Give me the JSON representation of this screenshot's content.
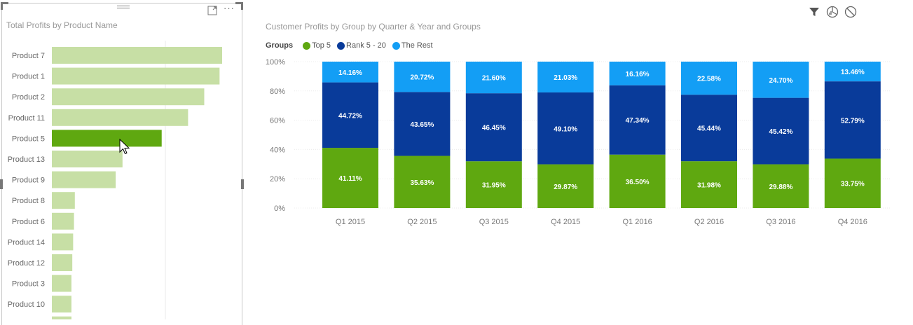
{
  "left_visual": {
    "title": "Total Profits by Product Name",
    "highlight_color": "#5fa810",
    "muted_color": "#c7dfa5"
  },
  "right_visual": {
    "title": "Customer Profits by Group by Quarter & Year and Groups",
    "legend_title": "Groups",
    "legend_items": [
      {
        "name": "Top 5",
        "color": "#5fa810"
      },
      {
        "name": "Rank 5 - 20",
        "color": "#093b9a"
      },
      {
        "name": "The Rest",
        "color": "#139ef5"
      }
    ]
  },
  "icons": {
    "focus": "focus-mode-icon",
    "more": "more-options-icon",
    "filter": "filter-icon",
    "analytics": "analytics-icon",
    "clear": "clear-icon"
  },
  "chart_data": [
    {
      "type": "bar",
      "orientation": "horizontal",
      "title": "Total Profits by Product Name",
      "categories": [
        "Product 7",
        "Product 1",
        "Product 2",
        "Product 11",
        "Product 5",
        "Product 13",
        "Product 9",
        "Product 8",
        "Product 6",
        "Product 14",
        "Product 12",
        "Product 3",
        "Product 10"
      ],
      "values": [
        100,
        98.5,
        89.5,
        80,
        64.5,
        41.5,
        37.5,
        13.5,
        13,
        12.5,
        12,
        11.5,
        11.5
      ],
      "highlighted": "Product 5",
      "grid": false
    },
    {
      "type": "bar",
      "stacked": true,
      "percent": true,
      "title": "Customer Profits by Group by Quarter & Year and Groups",
      "categories": [
        "Q1 2015",
        "Q2 2015",
        "Q3 2015",
        "Q4 2015",
        "Q1 2016",
        "Q2 2016",
        "Q3 2016",
        "Q4 2016"
      ],
      "series": [
        {
          "name": "Top 5",
          "values": [
            41.11,
            35.63,
            31.95,
            29.87,
            36.5,
            31.98,
            29.88,
            33.75
          ]
        },
        {
          "name": "Rank 5 - 20",
          "values": [
            44.72,
            43.65,
            46.45,
            49.1,
            47.34,
            45.44,
            45.42,
            52.79
          ]
        },
        {
          "name": "The Rest",
          "values": [
            14.16,
            20.72,
            21.6,
            21.03,
            16.16,
            22.58,
            24.7,
            13.46
          ]
        }
      ],
      "data_labels": {
        "Top 5": [
          "41.11%",
          "35.63%",
          "31.95%",
          "29.87%",
          "36.50%",
          "31.98%",
          "29.88%",
          "33.75%"
        ],
        "Rank 5 - 20": [
          "44.72%",
          "43.65%",
          "46.45%",
          "49.10%",
          "47.34%",
          "45.44%",
          "45.42%",
          "52.79%"
        ],
        "The Rest": [
          "14.16%",
          "20.72%",
          "21.60%",
          "21.03%",
          "16.16%",
          "22.58%",
          "24.70%",
          "13.46%"
        ]
      },
      "y_ticks": [
        "0%",
        "20%",
        "40%",
        "60%",
        "80%",
        "100%"
      ],
      "ylim": [
        0,
        100
      ],
      "legend": "top-left",
      "grid": true
    }
  ]
}
